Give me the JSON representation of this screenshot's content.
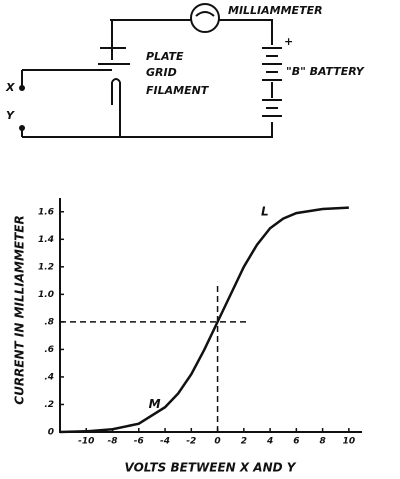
{
  "diagram": {
    "milliammeter": "MILLIAMMETER",
    "plate": "PLATE",
    "grid": "GRID",
    "filament": "FILAMENT",
    "x": "X",
    "y": "Y",
    "plus": "+",
    "battery": "\"B\" BATTERY"
  },
  "chart_data": {
    "type": "line",
    "x_label": "VOLTS BETWEEN X AND Y",
    "y_label": "CURRENT IN MILLIAMMETER",
    "x": [
      -12,
      -10,
      -8,
      -6,
      -4,
      -3,
      -2,
      -1,
      0,
      1,
      2,
      3,
      4,
      5,
      6,
      8,
      10
    ],
    "values": [
      0,
      0.005,
      0.02,
      0.06,
      0.18,
      0.28,
      0.42,
      0.6,
      0.8,
      1.0,
      1.2,
      1.36,
      1.48,
      1.55,
      1.59,
      1.62,
      1.63
    ],
    "color": "#111111",
    "xlim": [
      -12,
      11
    ],
    "ylim": [
      0,
      1.7
    ],
    "xticks": [
      -10,
      -8,
      -6,
      -4,
      -2,
      0,
      2,
      4,
      6,
      8,
      10
    ],
    "yticks": [
      0,
      {
        "value": 0.2,
        "label": ".2"
      },
      {
        "value": 0.4,
        "label": ".4"
      },
      {
        "value": 0.6,
        "label": ".6"
      },
      {
        "value": 0.8,
        "label": ".8"
      },
      {
        "value": 1.0,
        "label": "1.0"
      },
      1.2,
      1.4,
      1.6
    ],
    "marker": {
      "x": 0,
      "y": 0.8
    },
    "annotations": [
      "M",
      "L"
    ],
    "grid": false
  }
}
